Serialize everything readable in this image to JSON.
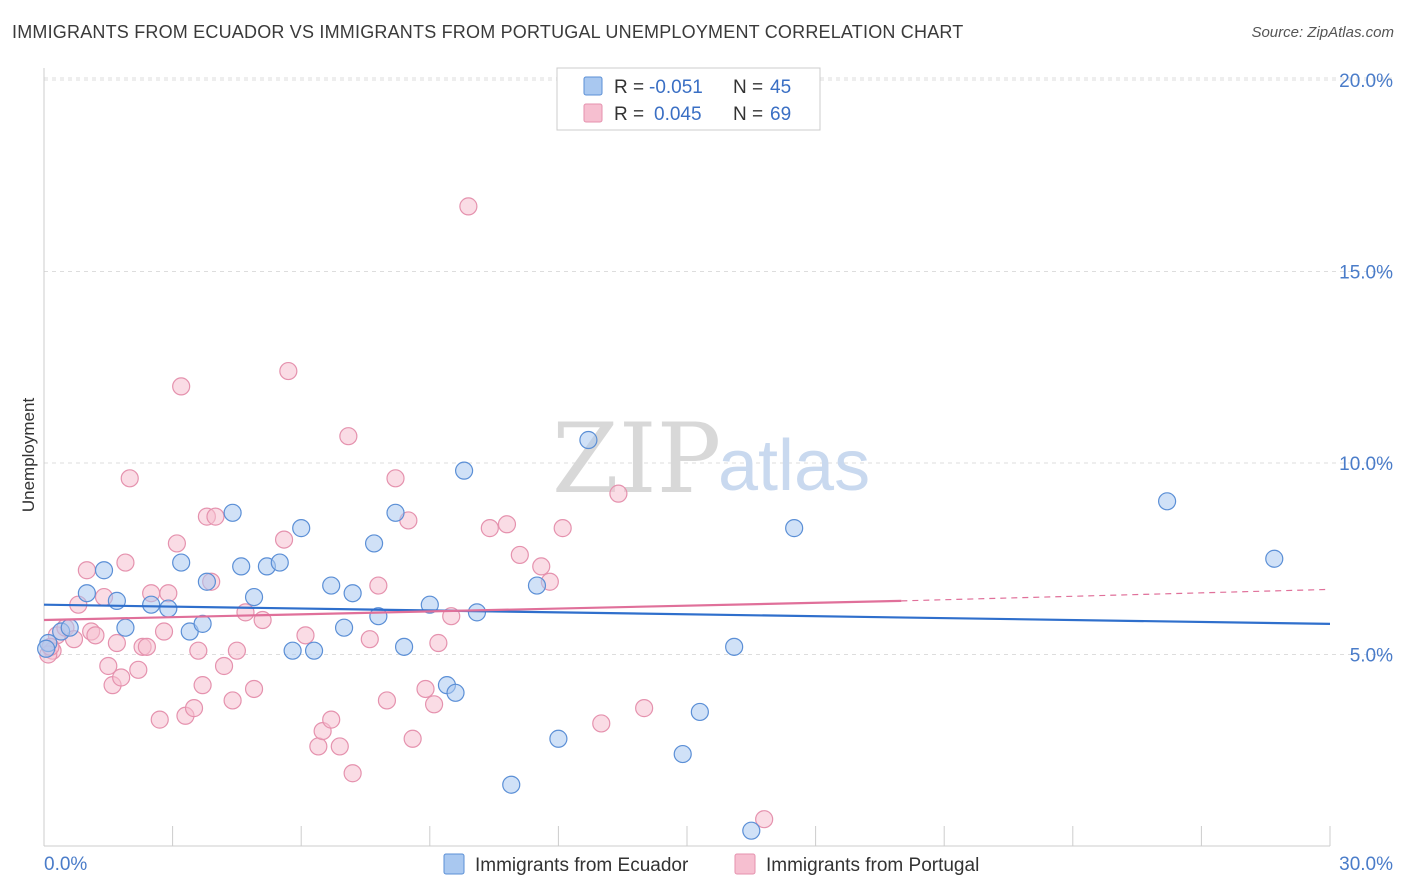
{
  "header": {
    "title": "IMMIGRANTS FROM ECUADOR VS IMMIGRANTS FROM PORTUGAL UNEMPLOYMENT CORRELATION CHART",
    "source": "Source: ZipAtlas.com"
  },
  "watermark": {
    "zip": "ZIP",
    "atlas": "atlas"
  },
  "colors": {
    "ecuador_fill": "#a9c8f0",
    "ecuador_stroke": "#5b8fd6",
    "ecuador_line": "#2f6fcc",
    "portugal_fill": "#f6bfd0",
    "portugal_stroke": "#e592ae",
    "portugal_line": "#e0709a",
    "tick_color": "#4a7cc9",
    "grid": "#dddddd"
  },
  "legend": {
    "rows": [
      {
        "r_label": "R =",
        "r_value": "-0.051",
        "n_label": "N =",
        "n_value": "45"
      },
      {
        "r_label": "R =",
        "r_value": "0.045",
        "n_label": "N =",
        "n_value": "69"
      }
    ]
  },
  "chart_data": {
    "type": "scatter",
    "title": "IMMIGRANTS FROM ECUADOR VS IMMIGRANTS FROM PORTUGAL UNEMPLOYMENT CORRELATION CHART",
    "xlabel": "",
    "ylabel": "Unemployment",
    "xlim": [
      0,
      30
    ],
    "ylim": [
      0,
      20
    ],
    "x_tick_labels": {
      "left": "0.0%",
      "right": "30.0%"
    },
    "y_ticks": [
      {
        "value": 5,
        "label": "5.0%"
      },
      {
        "value": 10,
        "label": "10.0%"
      },
      {
        "value": 15,
        "label": "15.0%"
      },
      {
        "value": 20,
        "label": "20.0%"
      }
    ],
    "grid": true,
    "legend_position": "top-center",
    "series": [
      {
        "name": "Immigrants from Ecuador",
        "r": -0.051,
        "n": 45,
        "trend": {
          "x": [
            0,
            30
          ],
          "y": [
            6.3,
            5.8
          ],
          "dashed_x": null
        },
        "points": [
          [
            0.1,
            5.3
          ],
          [
            0.4,
            5.6
          ],
          [
            0.6,
            5.7
          ],
          [
            1.0,
            6.6
          ],
          [
            1.4,
            7.2
          ],
          [
            1.7,
            6.4
          ],
          [
            1.9,
            5.7
          ],
          [
            2.5,
            6.3
          ],
          [
            2.9,
            6.2
          ],
          [
            3.2,
            7.4
          ],
          [
            3.4,
            5.6
          ],
          [
            3.8,
            6.9
          ],
          [
            3.7,
            5.8
          ],
          [
            4.4,
            8.7
          ],
          [
            4.6,
            7.3
          ],
          [
            4.9,
            6.5
          ],
          [
            5.2,
            7.3
          ],
          [
            5.5,
            7.4
          ],
          [
            5.8,
            5.1
          ],
          [
            6.0,
            8.3
          ],
          [
            6.3,
            5.1
          ],
          [
            6.7,
            6.8
          ],
          [
            7.0,
            5.7
          ],
          [
            7.2,
            6.6
          ],
          [
            7.7,
            7.9
          ],
          [
            7.8,
            6.0
          ],
          [
            8.2,
            8.7
          ],
          [
            8.4,
            5.2
          ],
          [
            9.0,
            6.3
          ],
          [
            9.4,
            4.2
          ],
          [
            9.6,
            4.0
          ],
          [
            9.8,
            9.8
          ],
          [
            10.1,
            6.1
          ],
          [
            10.9,
            1.6
          ],
          [
            11.5,
            6.8
          ],
          [
            12.0,
            2.8
          ],
          [
            12.7,
            10.6
          ],
          [
            14.9,
            2.4
          ],
          [
            15.3,
            3.5
          ],
          [
            16.1,
            5.2
          ],
          [
            16.5,
            0.4
          ],
          [
            17.5,
            8.3
          ],
          [
            26.2,
            9.0
          ],
          [
            28.7,
            7.5
          ],
          [
            0.05,
            5.15
          ]
        ]
      },
      {
        "name": "Immigrants from Portugal",
        "r": 0.045,
        "n": 69,
        "trend": {
          "x": [
            0,
            20
          ],
          "y": [
            5.9,
            6.4
          ],
          "dashed_x": [
            20,
            30
          ],
          "dashed_y": [
            6.4,
            6.7
          ]
        },
        "points": [
          [
            0.2,
            5.1
          ],
          [
            0.3,
            5.5
          ],
          [
            0.5,
            5.7
          ],
          [
            0.7,
            5.4
          ],
          [
            0.8,
            6.3
          ],
          [
            1.0,
            7.2
          ],
          [
            1.1,
            5.6
          ],
          [
            1.2,
            5.5
          ],
          [
            1.4,
            6.5
          ],
          [
            1.5,
            4.7
          ],
          [
            1.6,
            4.2
          ],
          [
            1.7,
            5.3
          ],
          [
            1.8,
            4.4
          ],
          [
            1.9,
            7.4
          ],
          [
            2.0,
            9.6
          ],
          [
            2.2,
            4.6
          ],
          [
            2.3,
            5.2
          ],
          [
            2.4,
            5.2
          ],
          [
            2.5,
            6.6
          ],
          [
            2.7,
            3.3
          ],
          [
            2.8,
            5.6
          ],
          [
            2.9,
            6.6
          ],
          [
            3.1,
            7.9
          ],
          [
            3.2,
            12.0
          ],
          [
            3.3,
            3.4
          ],
          [
            3.5,
            3.6
          ],
          [
            3.6,
            5.1
          ],
          [
            3.7,
            4.2
          ],
          [
            3.8,
            8.6
          ],
          [
            3.9,
            6.9
          ],
          [
            4.0,
            8.6
          ],
          [
            4.2,
            4.7
          ],
          [
            4.4,
            3.8
          ],
          [
            4.5,
            5.1
          ],
          [
            4.7,
            6.1
          ],
          [
            4.9,
            4.1
          ],
          [
            5.1,
            5.9
          ],
          [
            5.6,
            8.0
          ],
          [
            5.7,
            12.4
          ],
          [
            6.1,
            5.5
          ],
          [
            6.4,
            2.6
          ],
          [
            6.5,
            3.0
          ],
          [
            6.7,
            3.3
          ],
          [
            6.9,
            2.6
          ],
          [
            7.1,
            10.7
          ],
          [
            7.2,
            1.9
          ],
          [
            7.6,
            5.4
          ],
          [
            7.8,
            6.8
          ],
          [
            8.0,
            3.8
          ],
          [
            8.2,
            9.6
          ],
          [
            8.5,
            8.5
          ],
          [
            8.6,
            2.8
          ],
          [
            8.9,
            4.1
          ],
          [
            9.1,
            3.7
          ],
          [
            9.2,
            5.3
          ],
          [
            9.5,
            6.0
          ],
          [
            9.9,
            16.7
          ],
          [
            10.4,
            8.3
          ],
          [
            10.8,
            8.4
          ],
          [
            11.1,
            7.6
          ],
          [
            11.6,
            7.3
          ],
          [
            11.8,
            6.9
          ],
          [
            12.1,
            8.3
          ],
          [
            13.0,
            3.2
          ],
          [
            13.4,
            9.2
          ],
          [
            14.0,
            3.6
          ],
          [
            16.8,
            0.7
          ],
          [
            0.1,
            5.0
          ],
          [
            0.15,
            5.2
          ]
        ]
      }
    ]
  }
}
